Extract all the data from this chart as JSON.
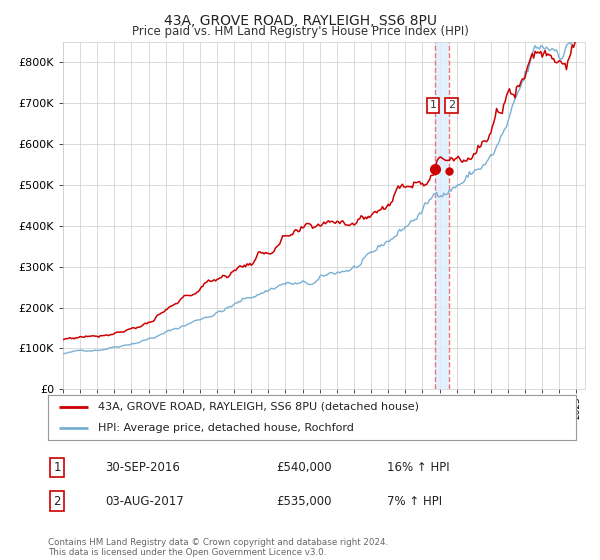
{
  "title": "43A, GROVE ROAD, RAYLEIGH, SS6 8PU",
  "subtitle": "Price paid vs. HM Land Registry's House Price Index (HPI)",
  "legend_line1": "43A, GROVE ROAD, RAYLEIGH, SS6 8PU (detached house)",
  "legend_line2": "HPI: Average price, detached house, Rochford",
  "transaction1_date": "30-SEP-2016",
  "transaction1_price": "£540,000",
  "transaction1_hpi": "16% ↑ HPI",
  "transaction2_date": "03-AUG-2017",
  "transaction2_price": "£535,000",
  "transaction2_hpi": "7% ↑ HPI",
  "footnote": "Contains HM Land Registry data © Crown copyright and database right 2024.\nThis data is licensed under the Open Government Licence v3.0.",
  "red_color": "#cc0000",
  "blue_color": "#7ab0d4",
  "dashed_color": "#ee6666",
  "shade_color": "#ddeeff",
  "grid_color": "#cccccc",
  "background_color": "#ffffff",
  "ylim": [
    0,
    850000
  ],
  "yticks": [
    0,
    100000,
    200000,
    300000,
    400000,
    500000,
    600000,
    700000,
    800000
  ],
  "xlim_start": 1995.0,
  "xlim_end": 2025.5,
  "transaction1_x": 2016.75,
  "transaction2_x": 2017.58,
  "transaction1_y": 540000,
  "transaction2_y": 535000
}
